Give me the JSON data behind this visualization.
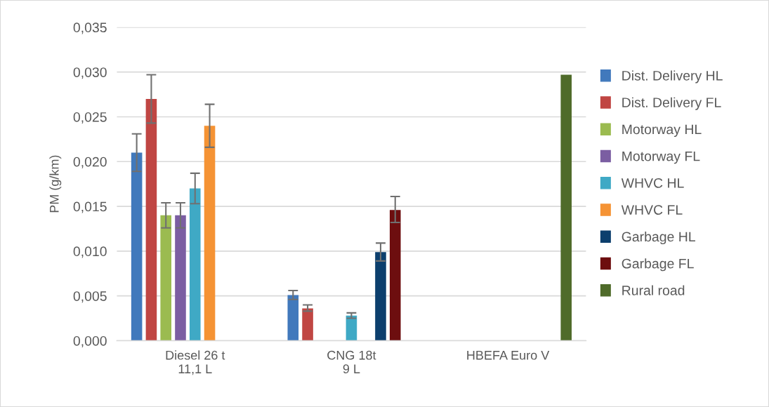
{
  "chart_data": {
    "type": "bar",
    "ylabel": "PM (g/km)",
    "categories": [
      "Diesel 26 t\n11,1 L",
      "CNG 18t\n9 L",
      "HBEFA Euro V"
    ],
    "series": [
      {
        "name": "Dist. Delivery HL",
        "color": "#4179bc",
        "values": [
          0.021,
          0.0051,
          null
        ],
        "errors": [
          [
            0.0189,
            0.0231
          ],
          [
            0.0046,
            0.0056
          ],
          null
        ]
      },
      {
        "name": "Dist. Delivery FL",
        "color": "#c04643",
        "values": [
          0.027,
          0.0036,
          null
        ],
        "errors": [
          [
            0.0243,
            0.0297
          ],
          [
            0.0033,
            0.004
          ],
          null
        ]
      },
      {
        "name": "Motorway HL",
        "color": "#9bbb50",
        "values": [
          0.014,
          null,
          null
        ],
        "errors": [
          [
            0.0126,
            0.0154
          ],
          null,
          null
        ]
      },
      {
        "name": "Motorway FL",
        "color": "#7b5ea2",
        "values": [
          0.014,
          null,
          null
        ],
        "errors": [
          [
            0.0126,
            0.0154
          ],
          null,
          null
        ]
      },
      {
        "name": "WHVC HL",
        "color": "#3fa9c5",
        "values": [
          0.017,
          0.0028,
          null
        ],
        "errors": [
          [
            0.0153,
            0.0187
          ],
          [
            0.0025,
            0.0031
          ],
          null
        ]
      },
      {
        "name": "WHVC FL",
        "color": "#f59334",
        "values": [
          0.024,
          null,
          null
        ],
        "errors": [
          [
            0.0216,
            0.0264
          ],
          null,
          null
        ]
      },
      {
        "name": "Garbage HL",
        "color": "#0c3f6d",
        "values": [
          null,
          0.0099,
          null
        ],
        "errors": [
          null,
          [
            0.0089,
            0.0109
          ],
          null
        ]
      },
      {
        "name": "Garbage FL",
        "color": "#6d0e0f",
        "values": [
          null,
          0.0146,
          null
        ],
        "errors": [
          null,
          [
            0.0132,
            0.0161
          ],
          null
        ]
      },
      {
        "name": "Rural road",
        "color": "#4f6b2a",
        "values": [
          null,
          null,
          0.0297
        ]
      }
    ],
    "ylim": [
      0,
      0.035
    ],
    "yticks": [
      {
        "value": 0,
        "label": "0,000"
      },
      {
        "value": 0.005,
        "label": "0,005"
      },
      {
        "value": 0.01,
        "label": "0,010"
      },
      {
        "value": 0.015,
        "label": "0,015"
      },
      {
        "value": 0.02,
        "label": "0,020"
      },
      {
        "value": 0.025,
        "label": "0,025"
      },
      {
        "value": 0.03,
        "label": "0,030"
      },
      {
        "value": 0.035,
        "label": "0,035"
      }
    ],
    "grid": "y",
    "legend": "right"
  }
}
